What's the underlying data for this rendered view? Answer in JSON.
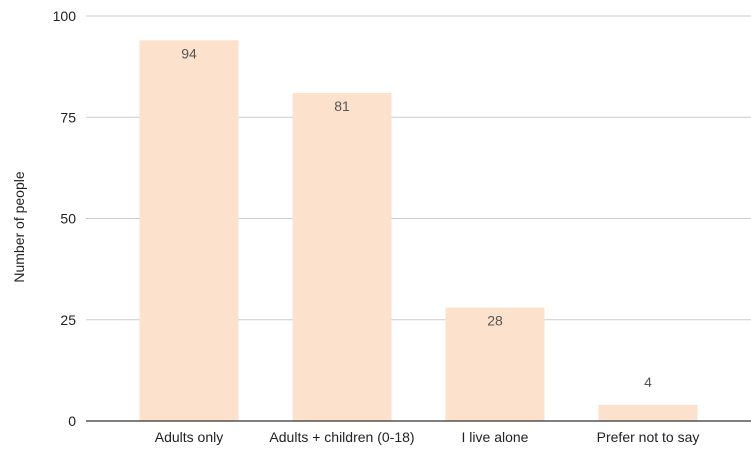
{
  "chart_data": {
    "type": "bar",
    "title": "",
    "xlabel": "",
    "ylabel": "Number of people",
    "categories": [
      "Adults only",
      "Adults + children (0-18)",
      "I live alone",
      "Prefer not to say"
    ],
    "values": [
      94,
      81,
      28,
      4
    ],
    "data_labels": [
      "94",
      "81",
      "28",
      "4"
    ],
    "ylim": [
      0,
      100
    ],
    "yticks": [
      0,
      25,
      50,
      75,
      100
    ],
    "ytick_labels": [
      "0",
      "25",
      "50",
      "75",
      "100"
    ],
    "grid": true,
    "legend": "none",
    "colors": {
      "bar": "#fce2cd",
      "grid": "#cccccc",
      "axis": "#333333",
      "label": "#222222",
      "value_label": "#555555"
    }
  }
}
